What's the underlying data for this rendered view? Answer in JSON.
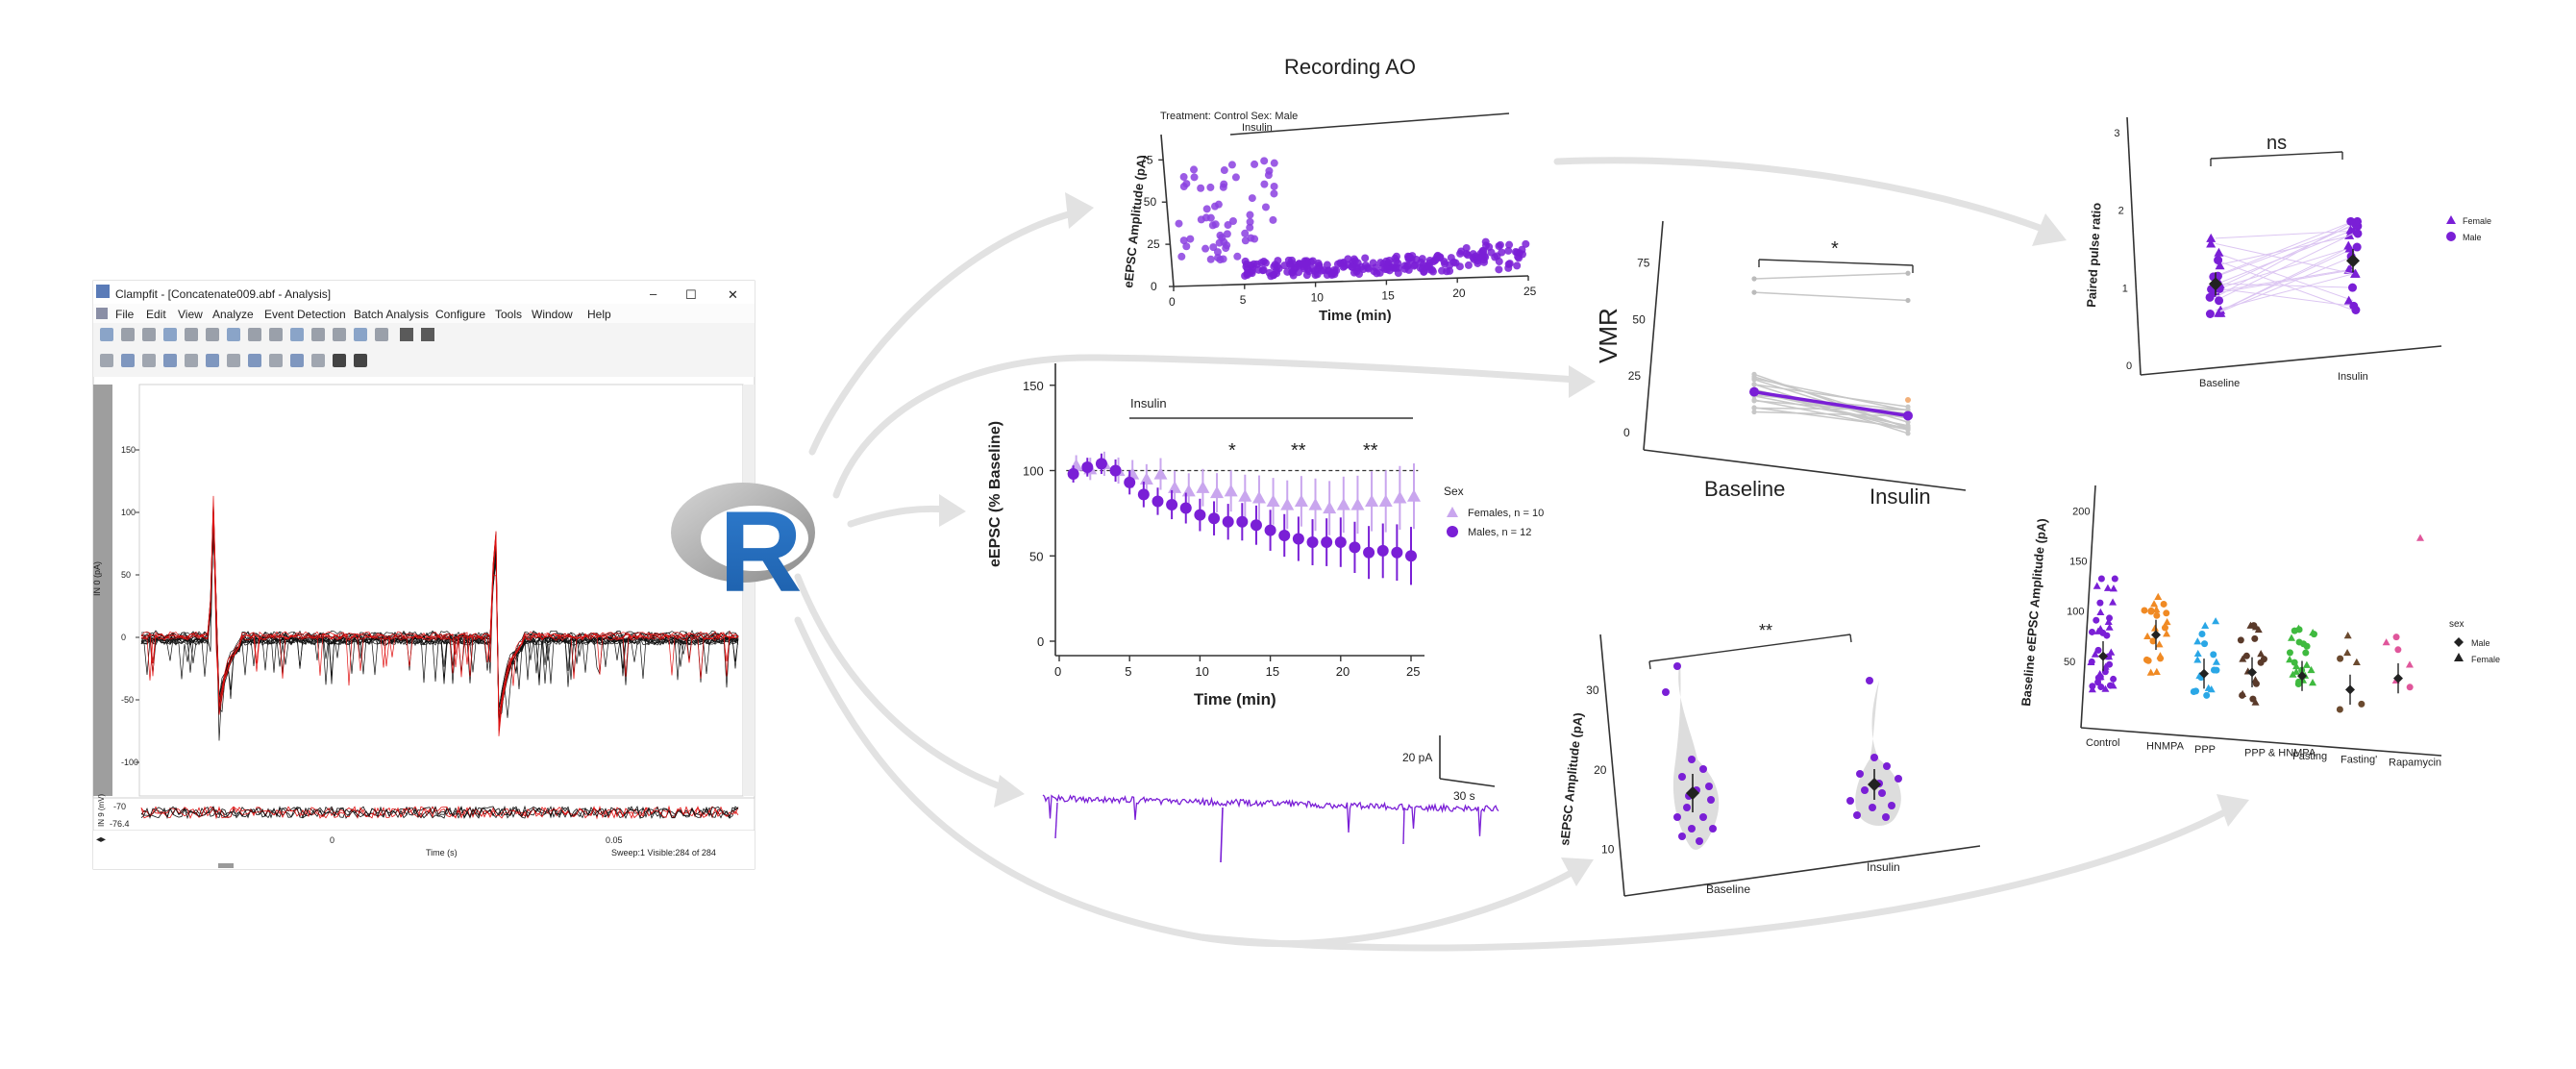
{
  "colors": {
    "purple": "#7a1fd6",
    "light_purple": "#c9a6ee",
    "arrow": "#e2e2e2",
    "trace": "#111111",
    "trace_red": "#e01010",
    "hnmpa": "#f08a24",
    "ppp": "#2aa7e6",
    "ppp_hnmpa": "#5a3a2a",
    "fasting": "#3fba3f",
    "fasting2": "#6b4a2f",
    "rapamycin": "#e0569b"
  },
  "clampfit": {
    "title": "Clampfit - [Concatenate009.abf - Analysis]",
    "menu": [
      "File",
      "Edit",
      "View",
      "Analyze",
      "Event Detection",
      "Batch Analysis",
      "Configure",
      "Tools",
      "Window",
      "Help"
    ],
    "y_ticks": [
      "150",
      "100",
      "50",
      "0",
      "-50",
      "-100"
    ],
    "y_label_top": "IN 0 (pA)",
    "lower_ticks": [
      "-70",
      "-76.4"
    ],
    "lower_label": "IN 9 (mV)",
    "x_ticks": [
      "0",
      "0.05"
    ],
    "x_label": "Time (s)",
    "status": "Sweep:1 Visible:284 of 284",
    "window_controls": [
      "–",
      "☐",
      "✕"
    ]
  },
  "r_logo": {
    "letter": "R"
  },
  "chart_data": [
    {
      "id": "recording-scatter",
      "type": "scatter",
      "title": "Recording AO",
      "subtitle": "Treatment: Control   Sex: Male",
      "annotation": "Insulin",
      "xlabel": "Time (min)",
      "ylabel": "eEPSC Amplitude (pA)",
      "x_ticks": [
        "0",
        "5",
        "10",
        "15",
        "20",
        "25"
      ],
      "y_ticks": [
        "0",
        "25",
        "50",
        "75"
      ],
      "xlim": [
        0,
        25
      ],
      "ylim": [
        0,
        90
      ]
    },
    {
      "id": "eepsc-timecourse",
      "type": "scatter",
      "annotation": "Insulin",
      "xlabel": "Time (min)",
      "ylabel": "eEPSC (% Baseline)",
      "x_ticks": [
        "0",
        "5",
        "10",
        "15",
        "20",
        "25"
      ],
      "y_ticks": [
        "0",
        "50",
        "100",
        "150"
      ],
      "xlim": [
        0,
        25
      ],
      "ylim": [
        0,
        160
      ],
      "significance": [
        "*",
        "**",
        "**"
      ],
      "legend_title": "Sex",
      "legend": [
        "Females, n = 10",
        "Males, n = 12"
      ],
      "x": [
        1,
        2,
        3,
        4,
        5,
        6,
        7,
        8,
        9,
        10,
        11,
        12,
        13,
        14,
        15,
        16,
        17,
        18,
        19,
        20,
        21,
        22,
        23,
        24,
        25
      ],
      "series": [
        {
          "name": "Females, n = 10",
          "values": [
            103,
            101,
            104,
            100,
            98,
            95,
            98,
            90,
            88,
            90,
            87,
            88,
            85,
            84,
            82,
            80,
            82,
            80,
            78,
            80,
            80,
            82,
            82,
            84,
            85
          ]
        },
        {
          "name": "Males, n = 12",
          "values": [
            98,
            102,
            104,
            100,
            93,
            86,
            82,
            80,
            78,
            74,
            72,
            70,
            70,
            68,
            65,
            62,
            60,
            58,
            58,
            58,
            55,
            52,
            53,
            52,
            50
          ]
        }
      ]
    },
    {
      "id": "vmr-paired",
      "type": "line",
      "ylabel": "VMR",
      "categories": [
        "Baseline",
        "Insulin"
      ],
      "y_ticks": [
        "0",
        "25",
        "50",
        "75"
      ],
      "ylim": [
        0,
        85
      ],
      "significance": "*",
      "mean": [
        18,
        10
      ]
    },
    {
      "id": "sepsc-trace",
      "type": "line",
      "scale_y": "20 pA",
      "scale_x": "30 s"
    },
    {
      "id": "sepsc-violin",
      "type": "scatter",
      "ylabel": "sEPSC Amplitude (pA)",
      "categories": [
        "Baseline",
        "Insulin"
      ],
      "y_ticks": [
        "10",
        "20",
        "30"
      ],
      "ylim": [
        5,
        34
      ],
      "significance": "**",
      "mean": [
        14.5,
        15.5
      ]
    },
    {
      "id": "ppr-paired",
      "type": "scatter",
      "ylabel": "Paired pulse ratio",
      "categories": [
        "Baseline",
        "Insulin"
      ],
      "y_ticks": [
        "0",
        "1",
        "2",
        "3"
      ],
      "ylim": [
        0,
        3.1
      ],
      "significance": "ns",
      "legend": [
        "Female",
        "Male"
      ],
      "mean": [
        1.05,
        1.25
      ]
    },
    {
      "id": "baseline-groups",
      "type": "scatter",
      "ylabel": "Baseline eEPSC Amplitude (pA)",
      "categories": [
        "Control",
        "HNMPA",
        "PPP",
        "PPP & HNMPA",
        "Fasting",
        "Fasting'",
        "Rapamycin"
      ],
      "y_ticks": [
        "50",
        "100",
        "150",
        "200"
      ],
      "ylim": [
        0,
        230
      ],
      "legend_title": "sex",
      "legend": [
        "Male",
        "Female"
      ],
      "mean": [
        55,
        80,
        45,
        50,
        50,
        40,
        55
      ]
    }
  ]
}
